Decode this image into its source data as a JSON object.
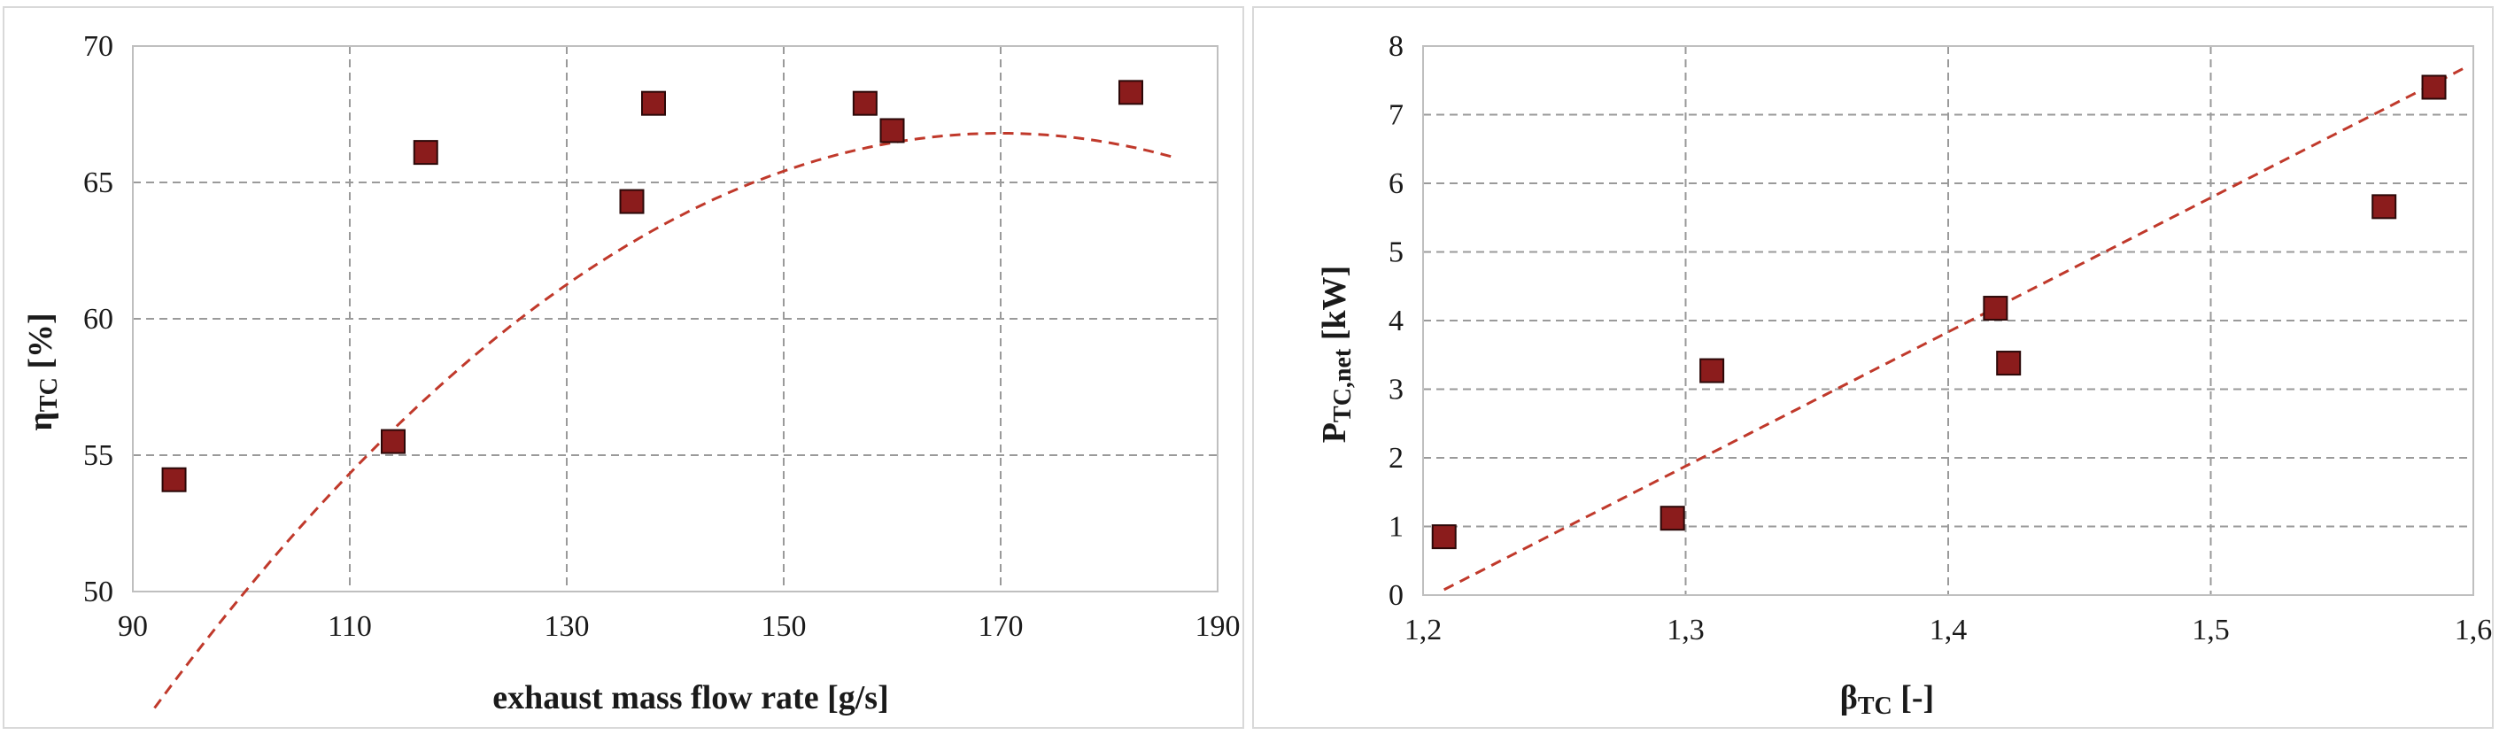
{
  "chart_data": [
    {
      "type": "scatter",
      "xlabel": "exhaust mass flow rate [g/s]",
      "ylabel": {
        "symbol": "η",
        "subscript": "TC",
        "unit": " [%]"
      },
      "xlim": [
        90,
        190
      ],
      "ylim": [
        50,
        70
      ],
      "xticks": [
        90,
        110,
        130,
        150,
        170,
        190
      ],
      "yticks": [
        50,
        55,
        60,
        65,
        70
      ],
      "xtick_labels": [
        "90",
        "110",
        "130",
        "150",
        "170",
        "190"
      ],
      "ytick_labels": [
        "50",
        "55",
        "60",
        "65",
        "70"
      ],
      "grid": true,
      "points": [
        {
          "x": 93.8,
          "y": 54.1
        },
        {
          "x": 114.0,
          "y": 55.5
        },
        {
          "x": 117.0,
          "y": 66.1
        },
        {
          "x": 136.0,
          "y": 64.3
        },
        {
          "x": 138.0,
          "y": 67.9
        },
        {
          "x": 157.5,
          "y": 67.9
        },
        {
          "x": 160.0,
          "y": 66.9
        },
        {
          "x": 182.0,
          "y": 68.3
        }
      ],
      "trendline": {
        "type": "polynomial",
        "x_range": [
          92,
          186
        ],
        "coefficients": [
          -33.27,
          1.1772,
          -0.003462
        ]
      }
    },
    {
      "type": "scatter",
      "xlabel": {
        "symbol": "β",
        "subscript": "TC",
        "unit": " [-]"
      },
      "ylabel": {
        "symbol": "P",
        "subscript": "TC,net",
        "unit": " [kW]"
      },
      "xlim": [
        1.2,
        1.6
      ],
      "ylim": [
        0,
        8
      ],
      "xticks": [
        1.2,
        1.3,
        1.4,
        1.5,
        1.6
      ],
      "yticks": [
        0,
        1,
        2,
        3,
        4,
        5,
        6,
        7,
        8
      ],
      "xtick_labels": [
        "1,2",
        "1,3",
        "1,4",
        "1,5",
        "1,6"
      ],
      "ytick_labels": [
        "0",
        "1",
        "2",
        "3",
        "4",
        "5",
        "6",
        "7",
        "8"
      ],
      "grid": true,
      "points": [
        {
          "x": 1.208,
          "y": 0.85
        },
        {
          "x": 1.295,
          "y": 1.12
        },
        {
          "x": 1.31,
          "y": 3.27
        },
        {
          "x": 1.418,
          "y": 4.18
        },
        {
          "x": 1.423,
          "y": 3.38
        },
        {
          "x": 1.566,
          "y": 5.66
        },
        {
          "x": 1.585,
          "y": 7.4
        }
      ],
      "trendline": {
        "type": "linear",
        "x_range": [
          1.208,
          1.596
        ],
        "slope": 19.56,
        "intercept": -23.55
      }
    }
  ]
}
